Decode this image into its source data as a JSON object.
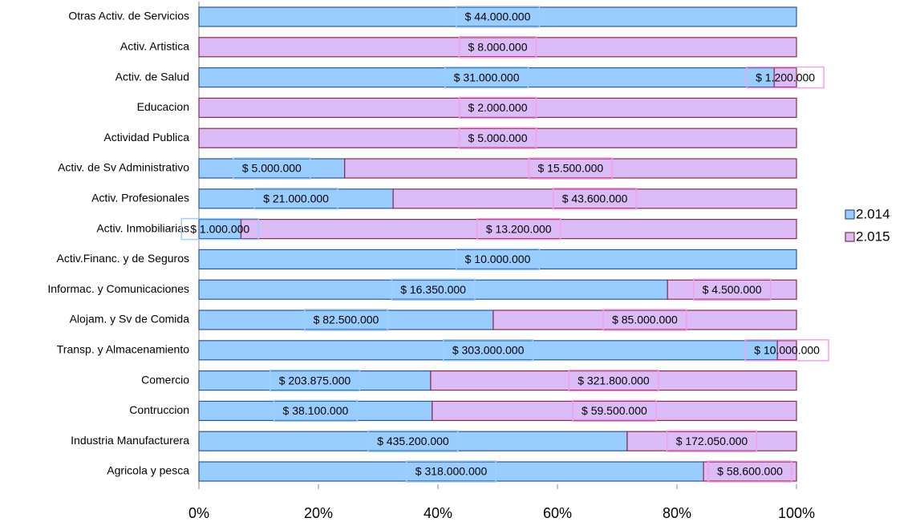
{
  "chart_data": {
    "type": "bar",
    "orientation": "horizontal",
    "stacking": "percent",
    "categories": [
      "Otras Activ. de Servicios",
      "Activ. Artistica",
      "Activ. de Salud",
      "Educacion",
      "Actividad Publica",
      "Activ. de Sv Administrativo",
      "Activ. Profesionales",
      "Activ. Inmobiliarias",
      "Activ.Financ. y de Seguros",
      "Informac. y Comunicaciones",
      "Alojam. y Sv de Comida",
      "Transp. y Almacenamiento",
      "Comercio",
      "Contruccion",
      "Industria Manufacturera",
      "Agricola y pesca"
    ],
    "series": [
      {
        "name": "2.014",
        "color": "#99ccff",
        "edge": "#2f5597",
        "values": [
          44000000,
          null,
          31000000,
          null,
          null,
          5000000,
          21000000,
          1000000,
          10000000,
          16350000,
          82500000,
          303000000,
          203875000,
          38100000,
          435200000,
          318000000
        ],
        "value_labels": [
          "$ 44.000.000",
          null,
          "$ 31.000.000",
          null,
          null,
          "$ 5.000.000",
          "$ 21.000.000",
          "$ 1.000.000",
          "$ 10.000.000",
          "$ 16.350.000",
          "$ 82.500.000",
          "$ 303.000.000",
          "$ 203.875.000",
          "$ 38.100.000",
          "$ 435.200.000",
          "$ 318.000.000"
        ]
      },
      {
        "name": "2.015",
        "color": "#dcbcf7",
        "edge": "#8b2a4a",
        "values": [
          null,
          8000000,
          1200000,
          2000000,
          5000000,
          15500000,
          43600000,
          13200000,
          null,
          4500000,
          85000000,
          10000000,
          321800000,
          59500000,
          172050000,
          58600000
        ],
        "value_labels": [
          null,
          "$ 8.000.000",
          "$ 1.200.000",
          "$ 2.000.000",
          "$ 5.000.000",
          "$ 15.500.000",
          "$ 43.600.000",
          "$ 13.200.000",
          null,
          "$ 4.500.000",
          "$ 85.000.000",
          "$ 10.000.000",
          "$ 321.800.000",
          "$ 59.500.000",
          "$ 172.050.000",
          "$ 58.600.000"
        ]
      }
    ],
    "xlim": [
      0,
      100
    ],
    "xticks": [
      {
        "value": 0,
        "label": "0%"
      },
      {
        "value": 20,
        "label": "20%"
      },
      {
        "value": 40,
        "label": "40%"
      },
      {
        "value": 60,
        "label": "60%"
      },
      {
        "value": 80,
        "label": "80%"
      },
      {
        "value": 100,
        "label": "100%"
      }
    ],
    "legend": "right"
  }
}
